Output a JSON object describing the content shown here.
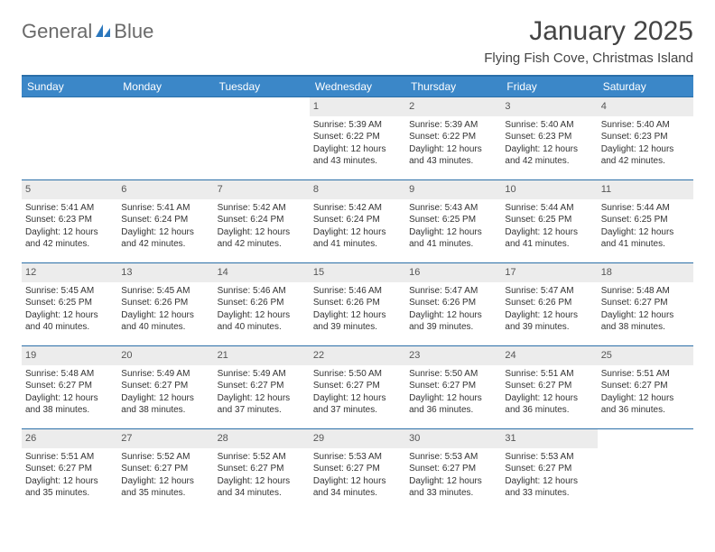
{
  "brand": {
    "name_a": "General",
    "name_b": "Blue"
  },
  "title": "January 2025",
  "location": "Flying Fish Cove, Christmas Island",
  "colors": {
    "header_bg": "#3b87c8",
    "header_border": "#2b6fa8",
    "daynum_bg": "#ececec",
    "text": "#333333",
    "brand_gray": "#6a6a6a",
    "brand_blue": "#2b77bd"
  },
  "weekdays": [
    "Sunday",
    "Monday",
    "Tuesday",
    "Wednesday",
    "Thursday",
    "Friday",
    "Saturday"
  ],
  "weeks": [
    [
      null,
      null,
      null,
      {
        "n": "1",
        "sr": "Sunrise: 5:39 AM",
        "ss": "Sunset: 6:22 PM",
        "d1": "Daylight: 12 hours",
        "d2": "and 43 minutes."
      },
      {
        "n": "2",
        "sr": "Sunrise: 5:39 AM",
        "ss": "Sunset: 6:22 PM",
        "d1": "Daylight: 12 hours",
        "d2": "and 43 minutes."
      },
      {
        "n": "3",
        "sr": "Sunrise: 5:40 AM",
        "ss": "Sunset: 6:23 PM",
        "d1": "Daylight: 12 hours",
        "d2": "and 42 minutes."
      },
      {
        "n": "4",
        "sr": "Sunrise: 5:40 AM",
        "ss": "Sunset: 6:23 PM",
        "d1": "Daylight: 12 hours",
        "d2": "and 42 minutes."
      }
    ],
    [
      {
        "n": "5",
        "sr": "Sunrise: 5:41 AM",
        "ss": "Sunset: 6:23 PM",
        "d1": "Daylight: 12 hours",
        "d2": "and 42 minutes."
      },
      {
        "n": "6",
        "sr": "Sunrise: 5:41 AM",
        "ss": "Sunset: 6:24 PM",
        "d1": "Daylight: 12 hours",
        "d2": "and 42 minutes."
      },
      {
        "n": "7",
        "sr": "Sunrise: 5:42 AM",
        "ss": "Sunset: 6:24 PM",
        "d1": "Daylight: 12 hours",
        "d2": "and 42 minutes."
      },
      {
        "n": "8",
        "sr": "Sunrise: 5:42 AM",
        "ss": "Sunset: 6:24 PM",
        "d1": "Daylight: 12 hours",
        "d2": "and 41 minutes."
      },
      {
        "n": "9",
        "sr": "Sunrise: 5:43 AM",
        "ss": "Sunset: 6:25 PM",
        "d1": "Daylight: 12 hours",
        "d2": "and 41 minutes."
      },
      {
        "n": "10",
        "sr": "Sunrise: 5:44 AM",
        "ss": "Sunset: 6:25 PM",
        "d1": "Daylight: 12 hours",
        "d2": "and 41 minutes."
      },
      {
        "n": "11",
        "sr": "Sunrise: 5:44 AM",
        "ss": "Sunset: 6:25 PM",
        "d1": "Daylight: 12 hours",
        "d2": "and 41 minutes."
      }
    ],
    [
      {
        "n": "12",
        "sr": "Sunrise: 5:45 AM",
        "ss": "Sunset: 6:25 PM",
        "d1": "Daylight: 12 hours",
        "d2": "and 40 minutes."
      },
      {
        "n": "13",
        "sr": "Sunrise: 5:45 AM",
        "ss": "Sunset: 6:26 PM",
        "d1": "Daylight: 12 hours",
        "d2": "and 40 minutes."
      },
      {
        "n": "14",
        "sr": "Sunrise: 5:46 AM",
        "ss": "Sunset: 6:26 PM",
        "d1": "Daylight: 12 hours",
        "d2": "and 40 minutes."
      },
      {
        "n": "15",
        "sr": "Sunrise: 5:46 AM",
        "ss": "Sunset: 6:26 PM",
        "d1": "Daylight: 12 hours",
        "d2": "and 39 minutes."
      },
      {
        "n": "16",
        "sr": "Sunrise: 5:47 AM",
        "ss": "Sunset: 6:26 PM",
        "d1": "Daylight: 12 hours",
        "d2": "and 39 minutes."
      },
      {
        "n": "17",
        "sr": "Sunrise: 5:47 AM",
        "ss": "Sunset: 6:26 PM",
        "d1": "Daylight: 12 hours",
        "d2": "and 39 minutes."
      },
      {
        "n": "18",
        "sr": "Sunrise: 5:48 AM",
        "ss": "Sunset: 6:27 PM",
        "d1": "Daylight: 12 hours",
        "d2": "and 38 minutes."
      }
    ],
    [
      {
        "n": "19",
        "sr": "Sunrise: 5:48 AM",
        "ss": "Sunset: 6:27 PM",
        "d1": "Daylight: 12 hours",
        "d2": "and 38 minutes."
      },
      {
        "n": "20",
        "sr": "Sunrise: 5:49 AM",
        "ss": "Sunset: 6:27 PM",
        "d1": "Daylight: 12 hours",
        "d2": "and 38 minutes."
      },
      {
        "n": "21",
        "sr": "Sunrise: 5:49 AM",
        "ss": "Sunset: 6:27 PM",
        "d1": "Daylight: 12 hours",
        "d2": "and 37 minutes."
      },
      {
        "n": "22",
        "sr": "Sunrise: 5:50 AM",
        "ss": "Sunset: 6:27 PM",
        "d1": "Daylight: 12 hours",
        "d2": "and 37 minutes."
      },
      {
        "n": "23",
        "sr": "Sunrise: 5:50 AM",
        "ss": "Sunset: 6:27 PM",
        "d1": "Daylight: 12 hours",
        "d2": "and 36 minutes."
      },
      {
        "n": "24",
        "sr": "Sunrise: 5:51 AM",
        "ss": "Sunset: 6:27 PM",
        "d1": "Daylight: 12 hours",
        "d2": "and 36 minutes."
      },
      {
        "n": "25",
        "sr": "Sunrise: 5:51 AM",
        "ss": "Sunset: 6:27 PM",
        "d1": "Daylight: 12 hours",
        "d2": "and 36 minutes."
      }
    ],
    [
      {
        "n": "26",
        "sr": "Sunrise: 5:51 AM",
        "ss": "Sunset: 6:27 PM",
        "d1": "Daylight: 12 hours",
        "d2": "and 35 minutes."
      },
      {
        "n": "27",
        "sr": "Sunrise: 5:52 AM",
        "ss": "Sunset: 6:27 PM",
        "d1": "Daylight: 12 hours",
        "d2": "and 35 minutes."
      },
      {
        "n": "28",
        "sr": "Sunrise: 5:52 AM",
        "ss": "Sunset: 6:27 PM",
        "d1": "Daylight: 12 hours",
        "d2": "and 34 minutes."
      },
      {
        "n": "29",
        "sr": "Sunrise: 5:53 AM",
        "ss": "Sunset: 6:27 PM",
        "d1": "Daylight: 12 hours",
        "d2": "and 34 minutes."
      },
      {
        "n": "30",
        "sr": "Sunrise: 5:53 AM",
        "ss": "Sunset: 6:27 PM",
        "d1": "Daylight: 12 hours",
        "d2": "and 33 minutes."
      },
      {
        "n": "31",
        "sr": "Sunrise: 5:53 AM",
        "ss": "Sunset: 6:27 PM",
        "d1": "Daylight: 12 hours",
        "d2": "and 33 minutes."
      },
      null
    ]
  ]
}
